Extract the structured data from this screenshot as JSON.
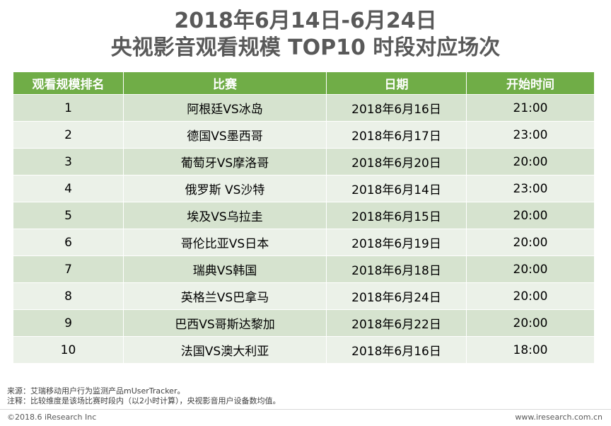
{
  "title_line1": "2018年6月14日-6月24日",
  "title_line2": "央视影音观看规模 TOP10 时段对应场次",
  "colors": {
    "header_bg": "#70ad47",
    "row_dark": "#d6e3cf",
    "row_light": "#ebf1e8",
    "title": "#595959"
  },
  "chart_data": {
    "type": "table",
    "columns": [
      "观看规模排名",
      "比赛",
      "日期",
      "开始时间"
    ],
    "rows": [
      [
        "1",
        "阿根廷VS冰岛",
        "2018年6月16日",
        "21:00"
      ],
      [
        "2",
        "德国VS墨西哥",
        "2018年6月17日",
        "23:00"
      ],
      [
        "3",
        "葡萄牙VS摩洛哥",
        "2018年6月20日",
        "20:00"
      ],
      [
        "4",
        "俄罗斯 VS沙特",
        "2018年6月14日",
        "23:00"
      ],
      [
        "5",
        "埃及VS乌拉圭",
        "2018年6月15日",
        "20:00"
      ],
      [
        "6",
        "哥伦比亚VS日本",
        "2018年6月19日",
        "20:00"
      ],
      [
        "7",
        "瑞典VS韩国",
        "2018年6月18日",
        "20:00"
      ],
      [
        "8",
        "英格兰VS巴拿马",
        "2018年6月24日",
        "20:00"
      ],
      [
        "9",
        "巴西VS哥斯达黎加",
        "2018年6月22日",
        "20:00"
      ],
      [
        "10",
        "法国VS澳大利亚",
        "2018年6月16日",
        "18:00"
      ]
    ]
  },
  "notes": {
    "source": "来源：艾瑞移动用户行为监测产品mUserTracker。",
    "note": "注释：比较维度是该场比赛时段内（以2小时计算），央视影音用户设备数均值。"
  },
  "footer": {
    "copyright": "©2018.6 iResearch Inc",
    "website": "www.iresearch.com.cn"
  }
}
